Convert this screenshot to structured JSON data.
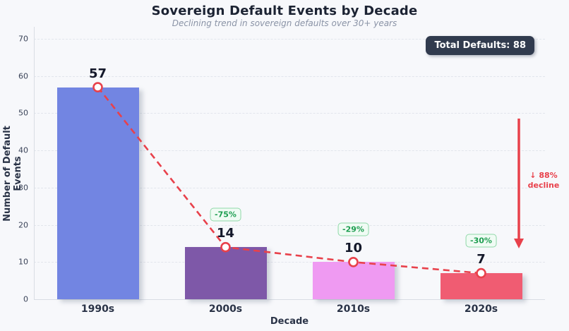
{
  "header": {
    "title": "Sovereign Default Events by Decade",
    "subtitle": "Declining trend in sovereign defaults over 30+ years"
  },
  "total_badge": {
    "label": "Total Defaults: 88"
  },
  "decline_annotation": {
    "line1": "↓ 88%",
    "line2": "decline"
  },
  "chart_data": {
    "type": "bar",
    "title": "Sovereign Default Events by Decade",
    "subtitle": "Declining trend in sovereign defaults over 30+ years",
    "categories": [
      "1990s",
      "2000s",
      "2010s",
      "2020s"
    ],
    "values": [
      57,
      14,
      10,
      7
    ],
    "value_labels": [
      "57",
      "14",
      "10",
      "7"
    ],
    "bar_colors": [
      "#7285e2",
      "#7e58a8",
      "#ef9af2",
      "#f05c72"
    ],
    "pct_change_badges": [
      "-75%",
      "-29%",
      "-30%"
    ],
    "xlabel": "Decade",
    "ylabel": "Number of Default Events",
    "yticks": [
      0,
      10,
      20,
      30,
      40,
      50,
      60,
      70
    ],
    "ylim": [
      0,
      73
    ],
    "grid": true,
    "legend": "none",
    "trend_line": {
      "style": "dashed",
      "color": "#e8414b",
      "marker": "open-circle"
    },
    "annotations": {
      "total_defaults": "Total Defaults: 88",
      "overall_decline": "↓ 88% decline",
      "badge_color": "#1d9e50"
    }
  }
}
